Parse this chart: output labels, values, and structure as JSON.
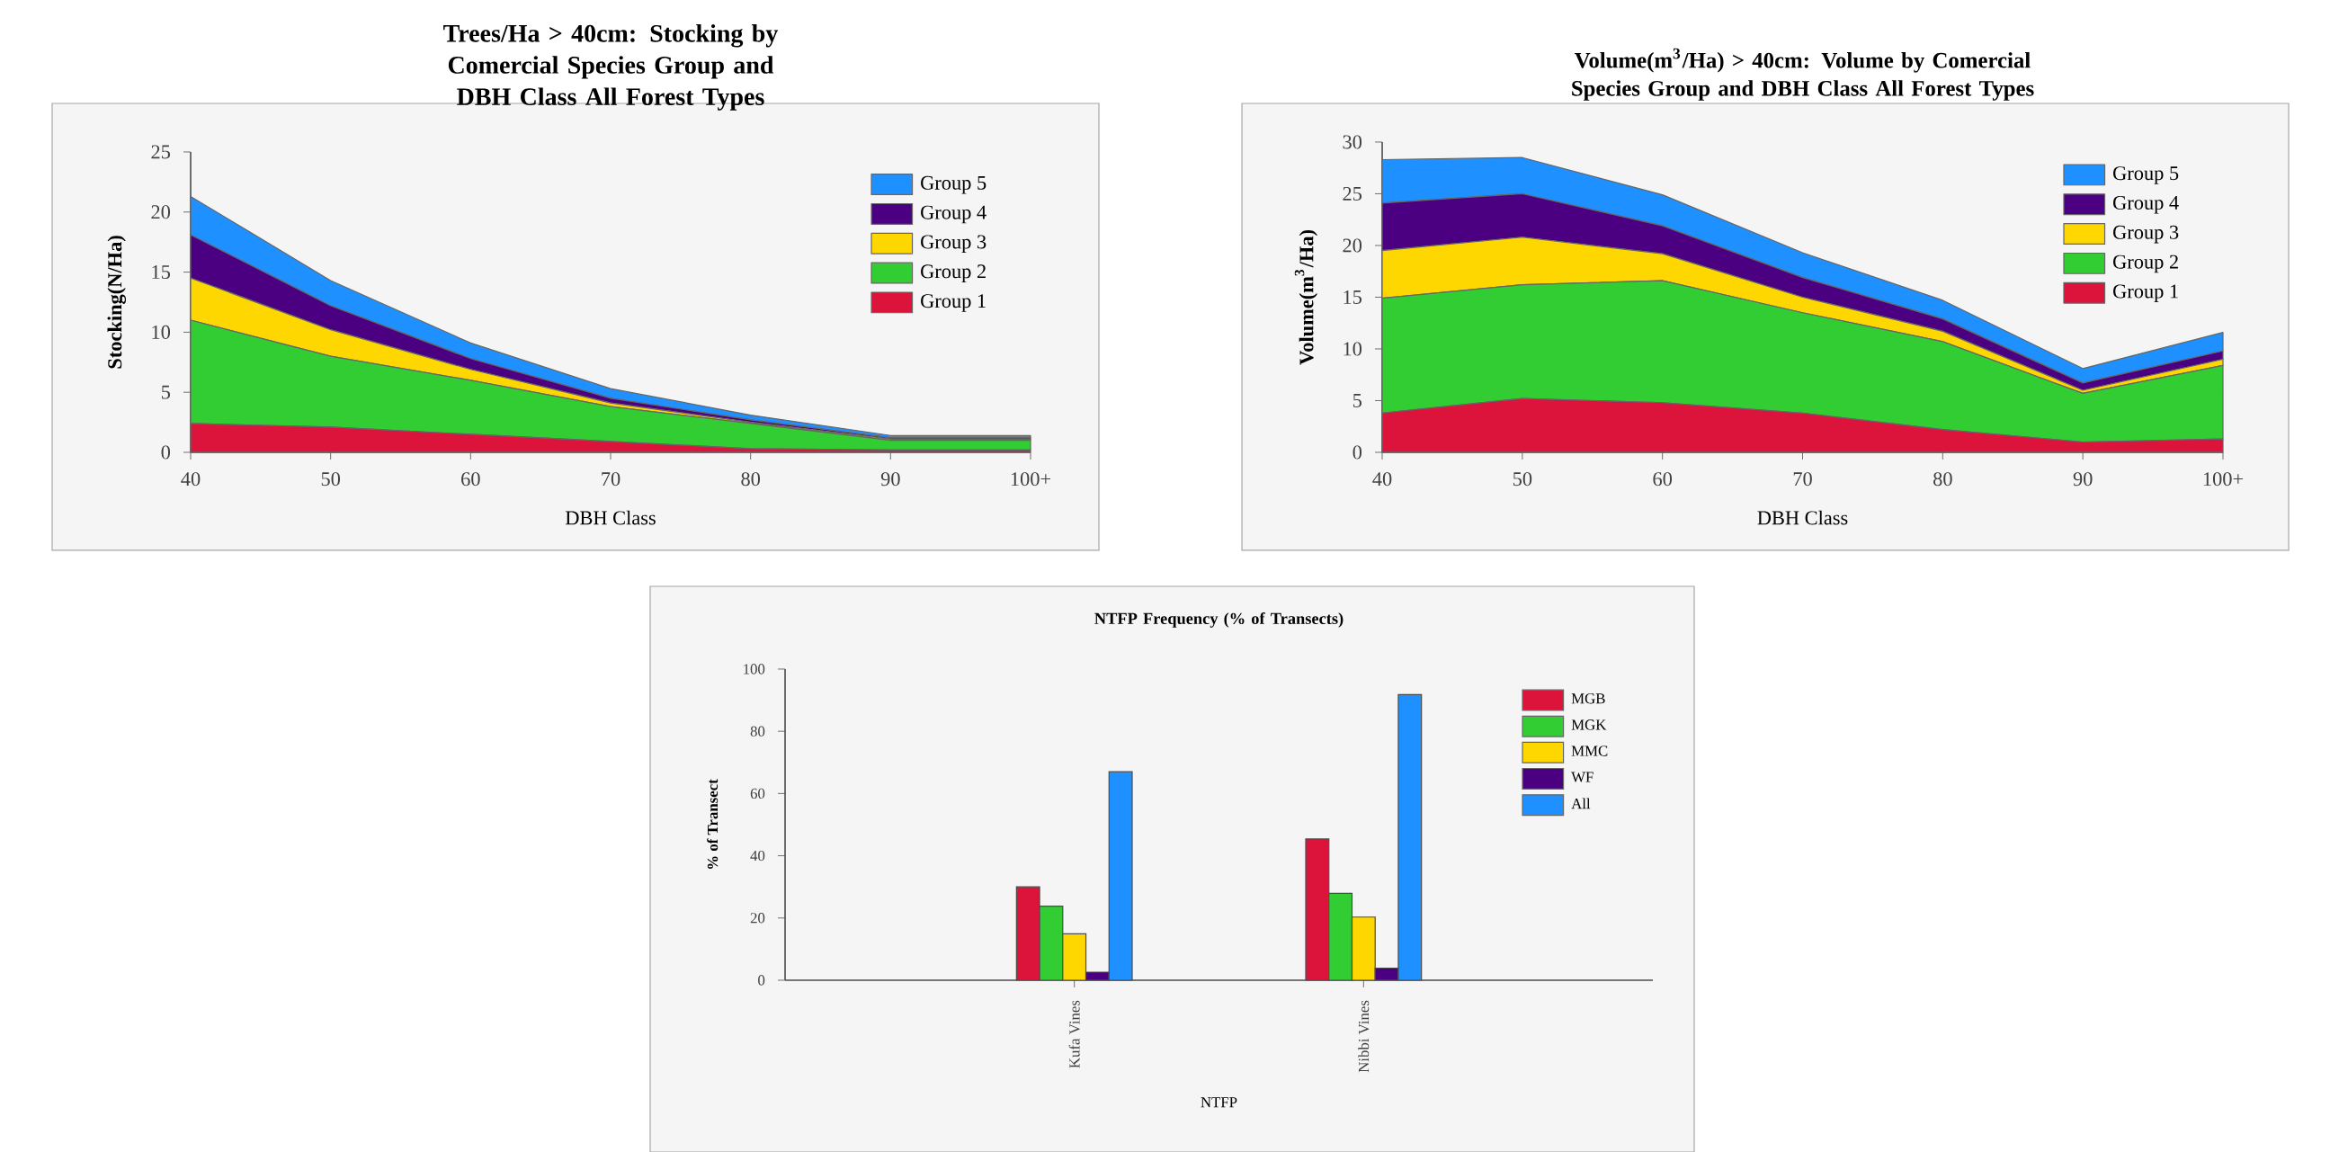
{
  "chart_data": [
    {
      "type": "area",
      "stacked": true,
      "title": "Trees/Ha > 40cm: Stocking by Comercial Species Group and DBH Class All Forest Types",
      "xlabel": "DBH Class",
      "ylabel": "Stocking(N/Ha)",
      "categories": [
        "40",
        "50",
        "60",
        "70",
        "80",
        "90",
        "100+"
      ],
      "ylim": [
        0,
        25
      ],
      "yticks": [
        0,
        5,
        10,
        15,
        20,
        25
      ],
      "legend": "top right",
      "series": [
        {
          "name": "Group 1",
          "color": "#dc143c",
          "values": [
            2.4,
            2.1,
            1.5,
            0.9,
            0.3,
            0.2,
            0.2
          ]
        },
        {
          "name": "Group 2",
          "color": "#32cd32",
          "values": [
            8.6,
            5.9,
            4.5,
            2.9,
            2.1,
            0.8,
            0.8
          ]
        },
        {
          "name": "Group 3",
          "color": "#ffd700",
          "values": [
            3.5,
            2.2,
            0.9,
            0.3,
            0.1,
            0.1,
            0.1
          ]
        },
        {
          "name": "Group 4",
          "color": "#4b0082",
          "values": [
            3.6,
            2.0,
            0.9,
            0.4,
            0.2,
            0.1,
            0.1
          ]
        },
        {
          "name": "Group 5",
          "color": "#1e90ff",
          "values": [
            3.2,
            2.1,
            1.3,
            0.8,
            0.4,
            0.2,
            0.2
          ]
        }
      ]
    },
    {
      "type": "area",
      "stacked": true,
      "title": "Volume(m$^{3}$/Ha) > 40cm: Volume by Comercial Species Group and DBH Class All Forest Types",
      "xlabel": "DBH Class",
      "ylabel": "Volume(m$^{3}$/Ha)",
      "categories": [
        "40",
        "50",
        "60",
        "70",
        "80",
        "90",
        "100+"
      ],
      "ylim": [
        0,
        30
      ],
      "yticks": [
        0,
        5,
        10,
        15,
        20,
        25,
        30
      ],
      "legend": "top right",
      "series": [
        {
          "name": "Group 1",
          "color": "#dc143c",
          "values": [
            3.8,
            5.2,
            4.8,
            3.8,
            2.2,
            1.0,
            1.3
          ]
        },
        {
          "name": "Group 2",
          "color": "#32cd32",
          "values": [
            11.1,
            11.0,
            11.8,
            9.7,
            8.5,
            4.7,
            7.1
          ]
        },
        {
          "name": "Group 3",
          "color": "#ffd700",
          "values": [
            4.6,
            4.6,
            2.6,
            1.5,
            1.0,
            0.3,
            0.6
          ]
        },
        {
          "name": "Group 4",
          "color": "#4b0082",
          "values": [
            4.6,
            4.2,
            2.7,
            1.9,
            1.2,
            0.7,
            0.8
          ]
        },
        {
          "name": "Group 5",
          "color": "#1e90ff",
          "values": [
            4.2,
            3.5,
            3.0,
            2.4,
            1.8,
            1.4,
            1.8
          ]
        }
      ]
    },
    {
      "type": "bar",
      "title": "NTFP Frequency (% of Transects)",
      "xlabel": "NTFP",
      "ylabel": "% of Transect",
      "categories": [
        "Kufa Vines",
        "Nibbi Vines"
      ],
      "ylim": [
        0,
        100
      ],
      "yticks": [
        0,
        20,
        40,
        60,
        80,
        100
      ],
      "legend": "top right",
      "series": [
        {
          "name": "MGB",
          "color": "#dc143c",
          "values": [
            30.0,
            45.4
          ]
        },
        {
          "name": "MGK",
          "color": "#32cd32",
          "values": [
            23.8,
            27.9
          ]
        },
        {
          "name": "MMC",
          "color": "#ffd700",
          "values": [
            14.9,
            20.3
          ]
        },
        {
          "name": "WF",
          "color": "#4b0082",
          "values": [
            2.6,
            3.9
          ]
        },
        {
          "name": "All",
          "color": "#1e90ff",
          "values": [
            67.0,
            91.8
          ]
        }
      ]
    }
  ]
}
